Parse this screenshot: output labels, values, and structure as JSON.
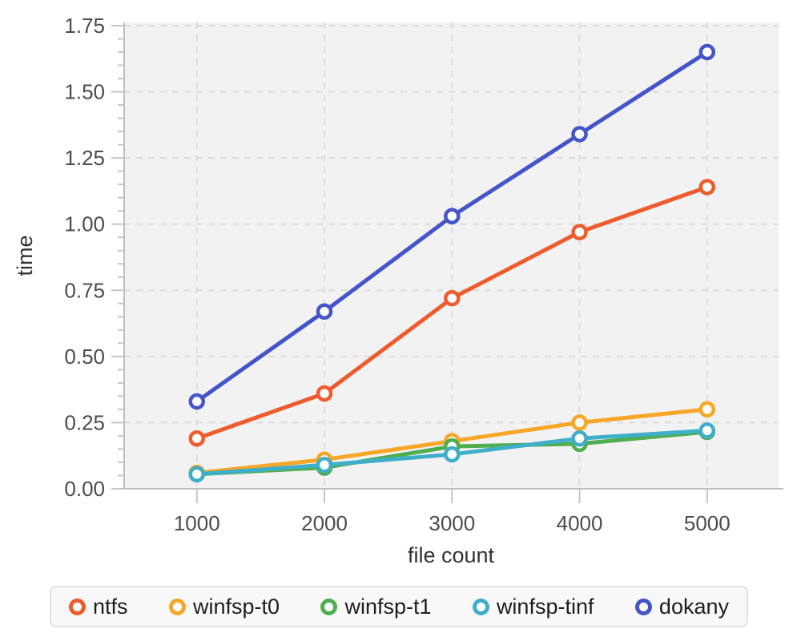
{
  "chart_data": {
    "type": "line",
    "title": "",
    "xlabel": "file count",
    "ylabel": "time",
    "x": [
      1000,
      2000,
      3000,
      4000,
      5000
    ],
    "x_tick_labels": [
      "1000",
      "2000",
      "3000",
      "4000",
      "5000"
    ],
    "y_ticks": [
      0,
      0.25,
      0.5,
      0.75,
      1.0,
      1.25,
      1.5,
      1.75
    ],
    "y_tick_labels": [
      "0.00",
      "0.25",
      "0.50",
      "0.75",
      "1.00",
      "1.25",
      "1.50",
      "1.75"
    ],
    "xlim": [
      430,
      5560
    ],
    "ylim": [
      0,
      1.75
    ],
    "y_minor_tick_step": 0.05,
    "grid": "dashed",
    "legend_position": "bottom",
    "series": [
      {
        "name": "ntfs",
        "color": "#ee5b2d",
        "values": [
          0.19,
          0.36,
          0.72,
          0.97,
          1.14
        ]
      },
      {
        "name": "winfsp-t0",
        "color": "#f7a728",
        "values": [
          0.06,
          0.11,
          0.18,
          0.25,
          0.3
        ]
      },
      {
        "name": "winfsp-t1",
        "color": "#4fae50",
        "values": [
          0.055,
          0.08,
          0.16,
          0.17,
          0.215
        ]
      },
      {
        "name": "winfsp-tinf",
        "color": "#3fafc9",
        "values": [
          0.055,
          0.09,
          0.13,
          0.19,
          0.22
        ]
      },
      {
        "name": "dokany",
        "color": "#4355c8",
        "values": [
          0.33,
          0.67,
          1.03,
          1.34,
          1.65
        ]
      }
    ]
  },
  "style": {
    "plot_bg": "#f2f2f2",
    "grid_color": "#dcdcdc",
    "spine_color": "#bdbdbd",
    "tick_color": "#c6c6c6",
    "tick_label_color": "#4c4c4c",
    "axis_label_color": "#333333",
    "marker_fill": "#ffffff"
  }
}
